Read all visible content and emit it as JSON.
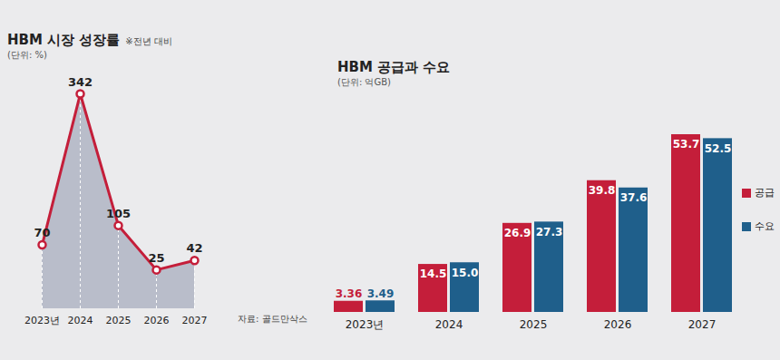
{
  "chart_data": [
    {
      "type": "line",
      "title": "HBM 시장 성장률",
      "subtitle": "(단위: %)",
      "annotations": [
        "※전년 대비"
      ],
      "categories": [
        "2023년",
        "2024",
        "2025",
        "2026",
        "2027"
      ],
      "values": [
        70,
        342,
        105,
        25,
        42
      ],
      "color": "#c41e3a",
      "ylim": [
        -45,
        360
      ],
      "data_labels": true,
      "tick_labels": "x"
    },
    {
      "type": "bar",
      "title": "HBM 공급과 수요",
      "subtitle": "(단위: 억GB)",
      "annotations": [
        "자료: 골드만삭스"
      ],
      "categories": [
        "2023년",
        "2024",
        "2025",
        "2026",
        "2027"
      ],
      "series": [
        {
          "name": "공급",
          "color": "#c41e3a",
          "values": [
            3.36,
            14.5,
            26.9,
            39.8,
            53.7
          ],
          "value_labels": [
            "3.36",
            "14.5",
            "26.9",
            "39.8",
            "53.7"
          ]
        },
        {
          "name": "수요",
          "color": "#1f5f8b",
          "values": [
            3.49,
            15.0,
            27.3,
            37.6,
            52.5
          ],
          "value_labels": [
            "3.49",
            "15.0",
            "27.3",
            "37.6",
            "52.5"
          ]
        }
      ],
      "ylim": [
        0,
        60
      ],
      "data_labels": true,
      "tick_labels": "x",
      "legend": "right"
    }
  ]
}
